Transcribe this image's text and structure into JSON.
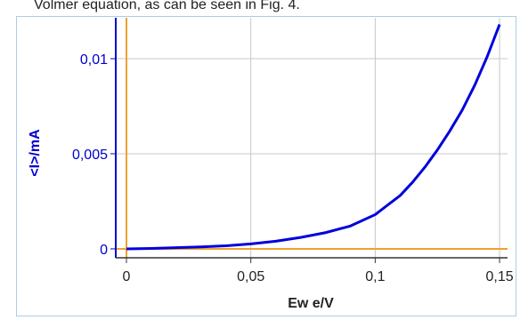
{
  "page_text": "Volmer equation, as can be seen in Fig. 4.",
  "chart_data": {
    "type": "line",
    "xlabel": "Ew e/V",
    "ylabel": "<I>/mA",
    "x": [
      0,
      0.01,
      0.02,
      0.03,
      0.04,
      0.05,
      0.06,
      0.07,
      0.08,
      0.09,
      0.1,
      0.105,
      0.11,
      0.115,
      0.12,
      0.125,
      0.13,
      0.135,
      0.14,
      0.145,
      0.15
    ],
    "series": [
      {
        "name": "<I>",
        "color": "#0000dd",
        "values": [
          0,
          2e-05,
          6e-05,
          0.0001,
          0.00016,
          0.00026,
          0.0004,
          0.0006,
          0.00085,
          0.0012,
          0.0018,
          0.0023,
          0.0028,
          0.0035,
          0.0043,
          0.0052,
          0.0062,
          0.0073,
          0.0086,
          0.0101,
          0.0118
        ]
      }
    ],
    "xlim": [
      -0.0043,
      0.1532
    ],
    "ylim": [
      -0.00047,
      0.01215
    ],
    "xticks": [
      0,
      {
        "value": 0.05,
        "label": "0,05"
      },
      {
        "value": 0.1,
        "label": "0,1"
      },
      {
        "value": 0.15,
        "label": "0,15"
      }
    ],
    "yticks": [
      0,
      {
        "value": 0.005,
        "label": "0,005"
      },
      {
        "value": 0.01,
        "label": "0,01"
      }
    ],
    "grid": true,
    "zero_line_color": "#f0a030",
    "axis_color": "#0000cc"
  }
}
